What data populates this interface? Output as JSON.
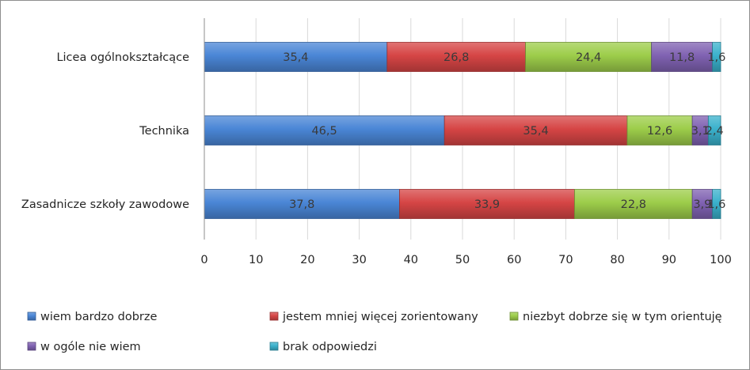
{
  "chart_data": {
    "type": "bar",
    "orientation": "horizontal",
    "stacked": true,
    "title": "",
    "xlabel": "",
    "ylabel": "",
    "xlim": [
      0,
      100
    ],
    "x_ticks": [
      0,
      10,
      20,
      30,
      40,
      50,
      60,
      70,
      80,
      90,
      100
    ],
    "grid": "vertical major gridlines",
    "legend_position": "bottom",
    "categories": [
      "Licea ogólnokształcące",
      "Technika",
      "Zasadnicze szkoły zawodowe"
    ],
    "series": [
      {
        "name": "wiem bardzo dobrze",
        "color": "#4a86d6",
        "values": [
          35.4,
          46.5,
          37.8
        ],
        "labels": [
          "35,4",
          "46,5",
          "37,8"
        ]
      },
      {
        "name": "jestem mniej więcej zorientowany",
        "color": "#d64545",
        "values": [
          26.8,
          35.4,
          33.9
        ],
        "labels": [
          "26,8",
          "35,4",
          "33,9"
        ]
      },
      {
        "name": "niezbyt dobrze się w tym orientuję",
        "color": "#9dcd4a",
        "values": [
          24.4,
          12.6,
          22.8
        ],
        "labels": [
          "24,4",
          "12,6",
          "22,8"
        ]
      },
      {
        "name": "w ogóle nie wiem",
        "color": "#8062b2",
        "values": [
          11.8,
          3.1,
          3.9
        ],
        "labels": [
          "11,8",
          "3,1",
          "3,9"
        ]
      },
      {
        "name": "brak odpowiedzi",
        "color": "#3ab1cc",
        "values": [
          1.6,
          2.4,
          1.6
        ],
        "labels": [
          "1,6",
          "2,4",
          "1,6"
        ]
      }
    ]
  }
}
